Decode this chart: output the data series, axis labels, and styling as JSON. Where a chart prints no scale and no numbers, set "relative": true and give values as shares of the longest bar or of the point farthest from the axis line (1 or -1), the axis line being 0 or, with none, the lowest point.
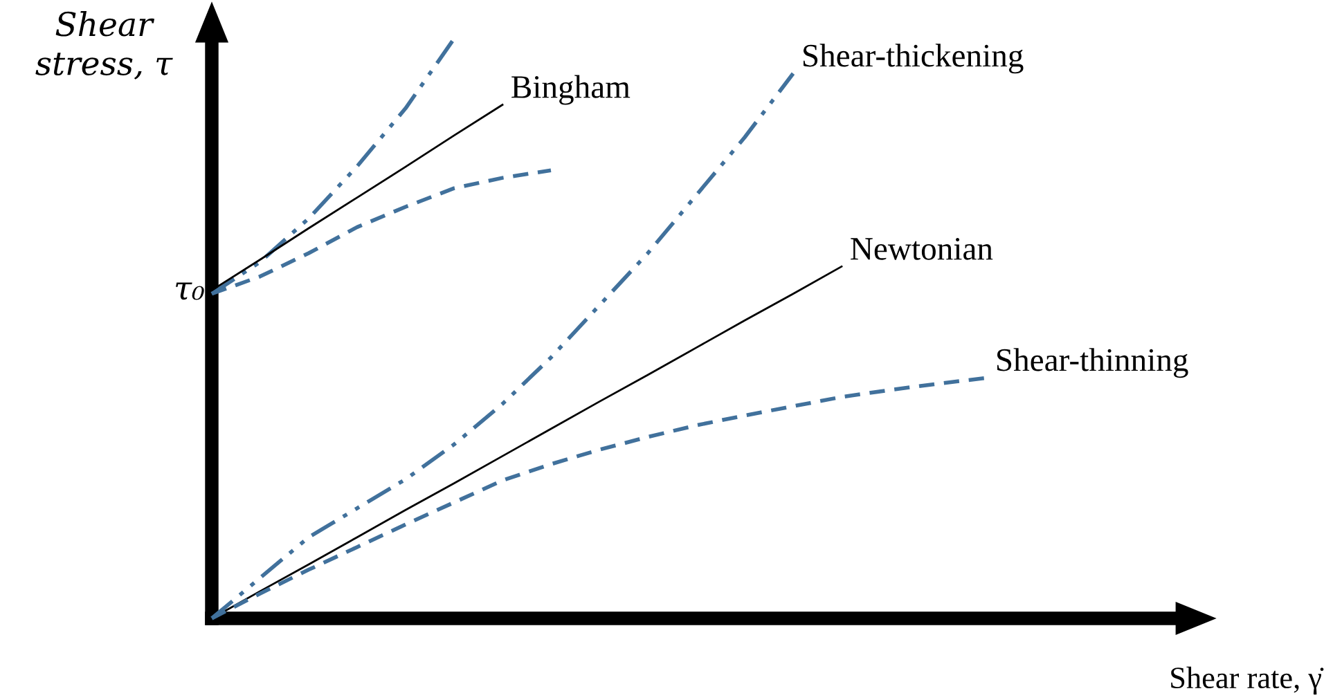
{
  "chart_data": {
    "type": "line",
    "relative": true,
    "ylabel": "Shear stress, τ",
    "annotations": [
      "τ₀",
      "Shear rate, γ̇"
    ],
    "categories": [
      null,
      null,
      null,
      null,
      null,
      null,
      null,
      null,
      null,
      null,
      null,
      null,
      null,
      null,
      null,
      null,
      null
    ],
    "series": [
      {
        "name": "Shear-thickening",
        "color": "#41719c",
        "line_style": "dashdotdot",
        "values": [
          0,
          0.07,
          0.14,
          0.19,
          0.24,
          0.3,
          0.37,
          0.45,
          0.54,
          0.63,
          0.73,
          0.83,
          0.94,
          null,
          null,
          null,
          null
        ]
      },
      {
        "name": "Newtonian",
        "color": "#000000",
        "line_style": "solid",
        "values": [
          0,
          0.047,
          0.093,
          0.14,
          0.187,
          0.233,
          0.28,
          0.327,
          0.374,
          0.42,
          0.467,
          0.514,
          0.56,
          0.607,
          null,
          null,
          null
        ]
      },
      {
        "name": "Shear-thinning",
        "color": "#41719c",
        "line_style": "dashed",
        "values": [
          0,
          0.043,
          0.084,
          0.123,
          0.162,
          0.2,
          0.238,
          0.266,
          0.291,
          0.313,
          0.333,
          0.35,
          0.366,
          0.382,
          0.394,
          0.405,
          0.415
        ]
      },
      {
        "color": "#41719c",
        "line_style": "dashdotdot",
        "values": [
          0.56,
          0.615,
          0.69,
          0.78,
          0.88,
          1.0,
          null,
          null,
          null,
          null,
          null,
          null,
          null,
          null,
          null,
          null,
          null
        ]
      },
      {
        "name": "Bingham",
        "color": "#000000",
        "line_style": "solid",
        "values": [
          0.566,
          0.619,
          0.673,
          0.726,
          0.779,
          0.833,
          0.886,
          null,
          null,
          null,
          null,
          null,
          null,
          null,
          null,
          null,
          null
        ]
      },
      {
        "color": "#41719c",
        "line_style": "dashed",
        "values": [
          0.56,
          0.59,
          0.63,
          0.675,
          0.71,
          0.742,
          0.76,
          0.773,
          null,
          null,
          null,
          null,
          null,
          null,
          null,
          null,
          null
        ]
      }
    ]
  }
}
